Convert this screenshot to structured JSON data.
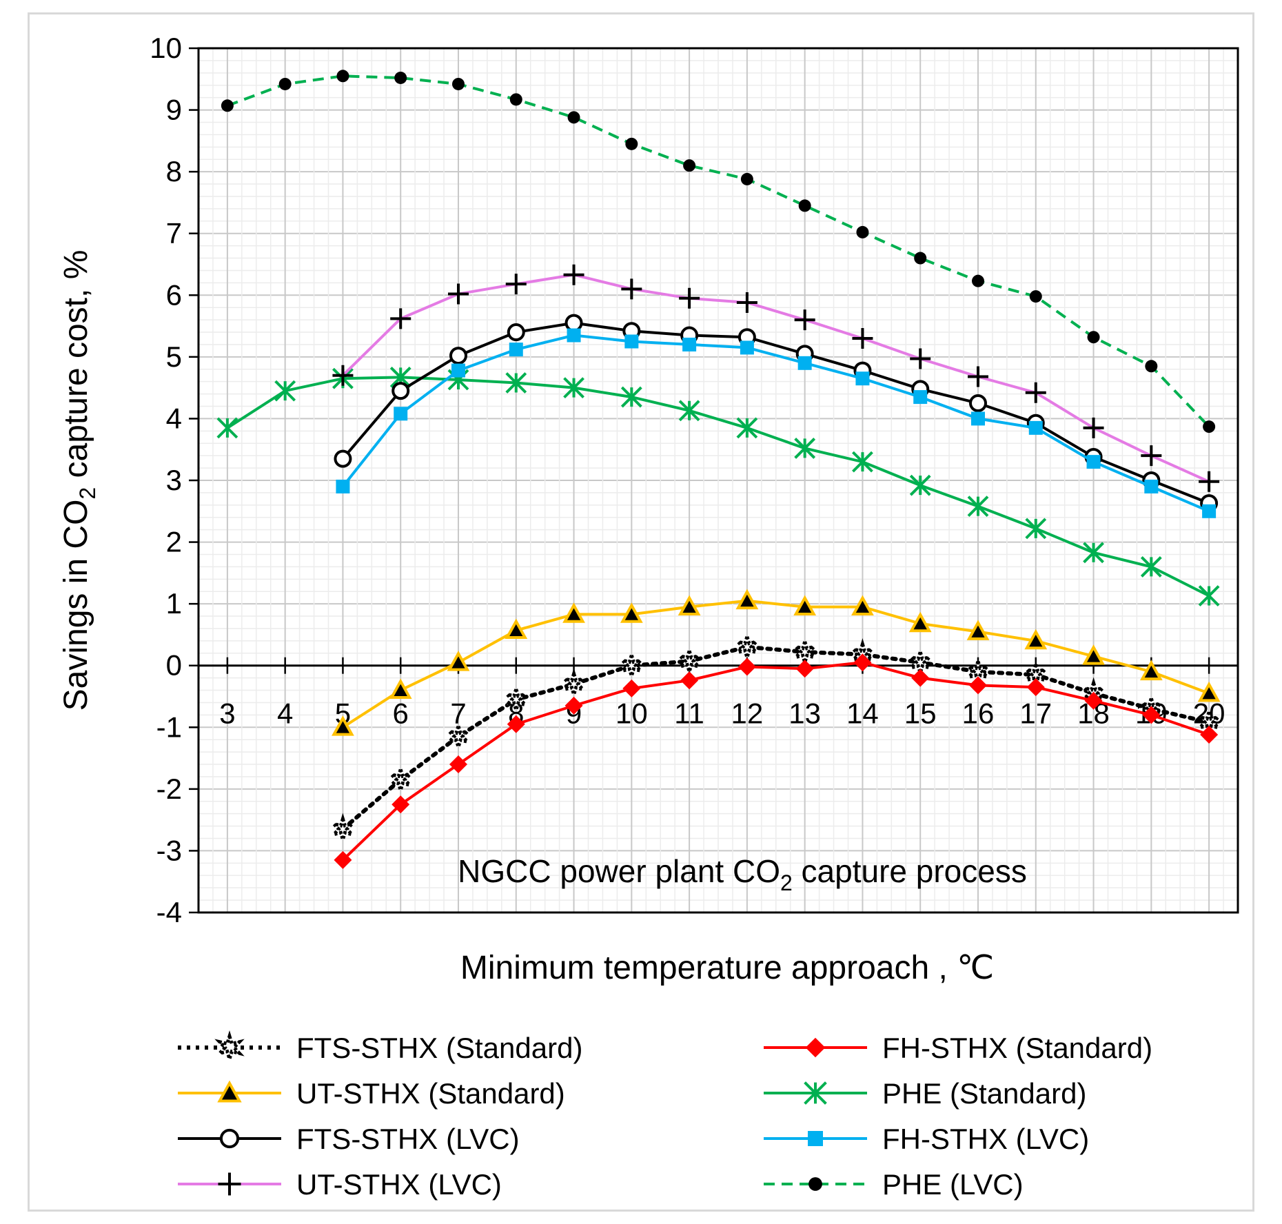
{
  "chart_data": {
    "type": "line",
    "title": "",
    "xlabel": "Minimum temperature approach , ℃",
    "ylabel_main": "Savings in CO",
    "ylabel_sub": "2",
    "ylabel_tail": " capture cost, %",
    "annotation_main": "NGCC power plant CO",
    "annotation_sub": "2",
    "annotation_tail": " capture process",
    "x": [
      3,
      4,
      5,
      6,
      7,
      8,
      9,
      10,
      11,
      12,
      13,
      14,
      15,
      16,
      17,
      18,
      19,
      20
    ],
    "xlim": [
      2.5,
      20.5
    ],
    "ylim": [
      -4,
      10
    ],
    "yticks": [
      -4,
      -3,
      -2,
      -1,
      0,
      1,
      2,
      3,
      4,
      5,
      6,
      7,
      8,
      9,
      10
    ],
    "xtick_labels": [
      "3",
      "4",
      "5",
      "6",
      "7",
      "8",
      "9",
      "10",
      "11",
      "12",
      "13",
      "14",
      "15",
      "16",
      "17",
      "18",
      "19",
      "20"
    ],
    "ytick_labels": [
      "-4",
      "-3",
      "-2",
      "-1",
      "0",
      "1",
      "2",
      "3",
      "4",
      "5",
      "6",
      "7",
      "8",
      "9",
      "10"
    ],
    "grid": true,
    "legend_position": "bottom",
    "series": [
      {
        "name": "FTS-STHX (Standard)",
        "color": "#000000",
        "dash": "dotted",
        "marker": "star",
        "values": [
          null,
          null,
          -2.65,
          -1.85,
          -1.15,
          -0.55,
          -0.3,
          0.0,
          0.07,
          0.3,
          0.22,
          0.18,
          0.05,
          -0.1,
          -0.15,
          -0.45,
          -0.7,
          -0.92
        ]
      },
      {
        "name": "FH-STHX (Standard)",
        "color": "#ff0000",
        "dash": "solid",
        "marker": "diamond",
        "values": [
          null,
          null,
          -3.15,
          -2.25,
          -1.6,
          -0.95,
          -0.65,
          -0.37,
          -0.24,
          -0.02,
          -0.05,
          0.05,
          -0.2,
          -0.32,
          -0.35,
          -0.57,
          -0.8,
          -1.12
        ]
      },
      {
        "name": "UT-STHX (Standard)",
        "color": "#ffc000",
        "dash": "solid",
        "marker": "triangle",
        "values": [
          null,
          null,
          -1.0,
          -0.4,
          0.05,
          0.57,
          0.83,
          0.83,
          0.95,
          1.05,
          0.95,
          0.95,
          0.68,
          0.55,
          0.4,
          0.15,
          -0.1,
          -0.45
        ]
      },
      {
        "name": "PHE (Standard)",
        "color": "#00b050",
        "dash": "solid",
        "marker": "asterisk",
        "values": [
          3.85,
          4.45,
          4.65,
          4.67,
          4.63,
          4.58,
          4.5,
          4.35,
          4.13,
          3.85,
          3.52,
          3.3,
          2.92,
          2.58,
          2.22,
          1.83,
          1.6,
          1.13
        ]
      },
      {
        "name": "FTS-STHX (LVC)",
        "color": "#000000",
        "dash": "solid",
        "marker": "circle",
        "values": [
          null,
          null,
          3.35,
          4.45,
          5.02,
          5.4,
          5.55,
          5.42,
          5.35,
          5.32,
          5.05,
          4.78,
          4.48,
          4.25,
          3.93,
          3.38,
          3.0,
          2.63
        ]
      },
      {
        "name": "FH-STHX (LVC)",
        "color": "#00b0f0",
        "dash": "solid",
        "marker": "square",
        "values": [
          null,
          null,
          2.9,
          4.08,
          4.78,
          5.12,
          5.35,
          5.25,
          5.2,
          5.15,
          4.9,
          4.65,
          4.35,
          4.0,
          3.85,
          3.3,
          2.9,
          2.5
        ]
      },
      {
        "name": "UT-STHX (LVC)",
        "color": "#e47be4",
        "dash": "solid",
        "marker": "plus",
        "values": [
          null,
          null,
          4.7,
          5.62,
          6.02,
          6.18,
          6.33,
          6.1,
          5.95,
          5.88,
          5.6,
          5.3,
          4.97,
          4.68,
          4.42,
          3.85,
          3.4,
          2.98
        ]
      },
      {
        "name": "PHE (LVC)",
        "color": "#00b050",
        "dash": "dashed",
        "marker": "dot",
        "values": [
          9.07,
          9.42,
          9.55,
          9.52,
          9.42,
          9.17,
          8.88,
          8.45,
          8.1,
          7.88,
          7.45,
          7.02,
          6.6,
          6.23,
          5.98,
          5.32,
          4.85,
          3.87
        ]
      }
    ]
  }
}
